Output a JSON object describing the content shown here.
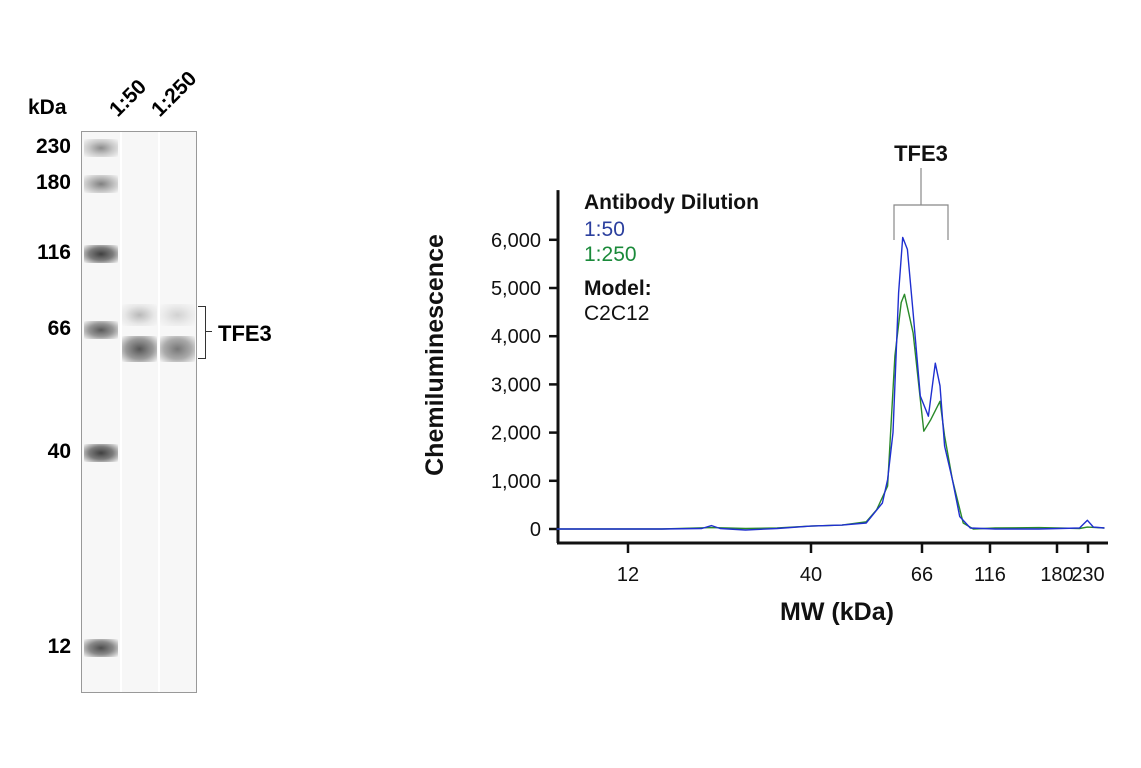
{
  "blot": {
    "unit_label": "kDa",
    "lane_labels": [
      "1:50",
      "1:250"
    ],
    "marker_labels": [
      "230",
      "180",
      "116",
      "66",
      "40",
      "12"
    ],
    "target_label": "TFE3"
  },
  "chart_data": {
    "type": "line",
    "title": "",
    "annotation": "TFE3",
    "xlabel": "MW (kDa)",
    "ylabel": "Chemiluminescence",
    "x_scale": "log (calibrated to MW markers)",
    "x_ticks": [
      12,
      40,
      66,
      116,
      180,
      230
    ],
    "x_tick_labels": [
      "12",
      "40",
      "66",
      "116",
      "180",
      "230"
    ],
    "y_ticks": [
      0,
      1000,
      2000,
      3000,
      4000,
      5000,
      6000
    ],
    "y_tick_labels": [
      "0",
      "1,000",
      "2,000",
      "3,000",
      "4,000",
      "5,000",
      "6,000"
    ],
    "xlim": [
      7.5,
      262
    ],
    "ylim": [
      -290,
      7030
    ],
    "grid": false,
    "legend": {
      "title": "Antibody Dilution",
      "placement": "top-left",
      "model_label": "Model:",
      "model_value": "C2C12"
    },
    "series": [
      {
        "name": "1:50",
        "color": "#1f2fd0",
        "label_color": "#2b3f9e",
        "x": [
          7.5,
          15,
          19.5,
          20.8,
          22,
          26,
          32,
          40,
          46,
          51.3,
          55.2,
          56.5,
          57.9,
          59.4,
          60.5,
          61.8,
          63.4,
          65.5,
          69.6,
          73.7,
          76.6,
          79.6,
          84.9,
          90.2,
          98.5,
          120,
          160,
          215,
          229,
          240,
          262
        ],
        "y": [
          0,
          0,
          10,
          70,
          10,
          -20,
          10,
          60,
          80,
          125,
          540,
          1025,
          2000,
          4900,
          6050,
          5800,
          4490,
          2760,
          2340,
          3440,
          2970,
          1720,
          1025,
          260,
          20,
          0,
          0,
          20,
          180,
          40,
          20
        ]
      },
      {
        "name": "1:250",
        "color": "#2a8a2a",
        "label_color": "#1a8a3a",
        "x": [
          7.5,
          15,
          20.8,
          26,
          32,
          40,
          46,
          51.3,
          53.8,
          56.5,
          58.4,
          60.1,
          61,
          63.4,
          65.5,
          67,
          71,
          76.6,
          79.6,
          84.9,
          92.9,
          101,
          120,
          160,
          215,
          229,
          262
        ],
        "y": [
          0,
          0,
          30,
          10,
          20,
          60,
          80,
          150,
          400,
          890,
          3590,
          4700,
          4870,
          4070,
          2690,
          2030,
          2270,
          2650,
          1930,
          1025,
          125,
          0,
          20,
          30,
          10,
          40,
          20
        ]
      }
    ]
  }
}
